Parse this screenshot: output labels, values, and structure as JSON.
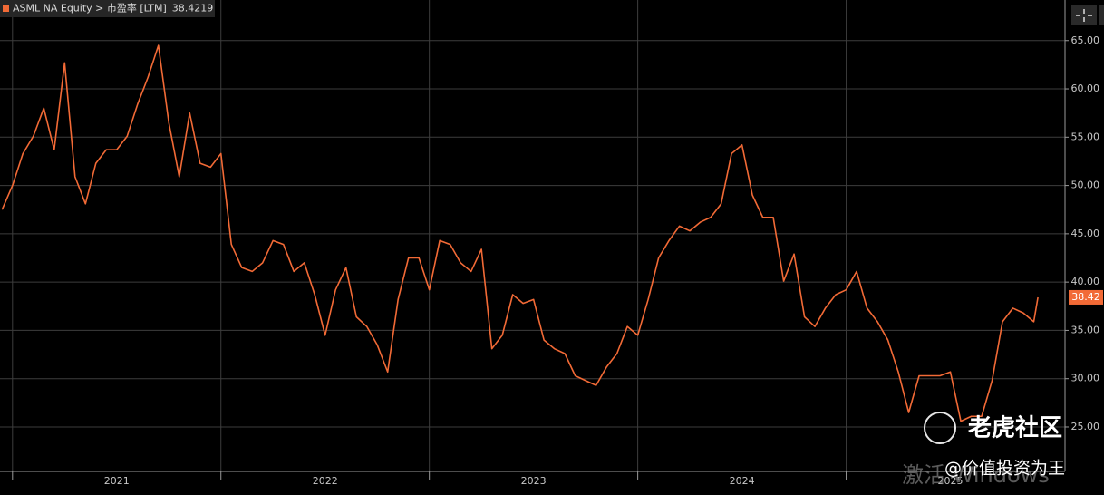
{
  "chart_data": {
    "type": "line",
    "x": [
      2020.95,
      2021.0,
      2021.05,
      2021.1,
      2021.15,
      2021.2,
      2021.25,
      2021.3,
      2021.35,
      2021.4,
      2021.45,
      2021.5,
      2021.55,
      2021.6,
      2021.65,
      2021.7,
      2021.75,
      2021.8,
      2021.85,
      2021.9,
      2021.95,
      2022.0,
      2022.05,
      2022.1,
      2022.15,
      2022.2,
      2022.25,
      2022.3,
      2022.35,
      2022.4,
      2022.45,
      2022.5,
      2022.55,
      2022.6,
      2022.65,
      2022.7,
      2022.75,
      2022.8,
      2022.85,
      2022.9,
      2022.95,
      2023.0,
      2023.05,
      2023.1,
      2023.15,
      2023.2,
      2023.25,
      2023.3,
      2023.35,
      2023.4,
      2023.45,
      2023.5,
      2023.55,
      2023.6,
      2023.65,
      2023.7,
      2023.75,
      2023.8,
      2023.85,
      2023.9,
      2023.95,
      2024.0,
      2024.05,
      2024.1,
      2024.15,
      2024.2,
      2024.25,
      2024.3,
      2024.35,
      2024.4,
      2024.45,
      2024.5,
      2024.55,
      2024.6,
      2024.65,
      2024.7,
      2024.75,
      2024.8,
      2024.85,
      2024.9,
      2024.95,
      2025.0,
      2025.05,
      2025.1,
      2025.15,
      2025.2,
      2025.25,
      2025.3,
      2025.35,
      2025.4,
      2025.45,
      2025.5,
      2025.55,
      2025.6,
      2025.65,
      2025.7,
      2025.75,
      2025.8,
      2025.85,
      2025.9,
      2025.92
    ],
    "series": [
      {
        "name": "ASML NA Equity > 市盈率 [LTM]",
        "color": "#f26a36",
        "values": [
          47.5,
          50.0,
          53.3,
          55.1,
          58.0,
          53.7,
          62.7,
          50.9,
          48.1,
          52.3,
          53.7,
          53.7,
          55.1,
          58.4,
          61.2,
          64.5,
          56.5,
          50.9,
          57.5,
          52.3,
          51.9,
          53.3,
          43.9,
          41.5,
          41.1,
          42.0,
          44.3,
          43.9,
          41.1,
          42.0,
          38.7,
          34.5,
          39.2,
          41.5,
          36.4,
          35.4,
          33.5,
          30.7,
          38.2,
          42.5,
          42.5,
          39.2,
          44.3,
          43.9,
          42.0,
          41.1,
          43.4,
          33.1,
          34.5,
          38.7,
          37.8,
          38.2,
          34.0,
          33.1,
          32.6,
          30.3,
          29.8,
          29.3,
          31.2,
          32.6,
          35.4,
          34.5,
          38.2,
          42.5,
          44.3,
          45.8,
          45.3,
          46.2,
          46.7,
          48.1,
          53.3,
          54.2,
          49.0,
          46.7,
          46.7,
          40.1,
          42.9,
          36.4,
          35.4,
          37.3,
          38.7,
          39.2,
          41.1,
          37.3,
          35.9,
          34.0,
          30.7,
          26.5,
          30.3,
          30.3,
          30.3,
          30.7,
          25.6,
          26.1,
          26.1,
          29.8,
          35.9,
          37.3,
          36.8,
          35.9,
          38.4219
        ],
        "value_labels": [
          null,
          null,
          null,
          null,
          null,
          null,
          null,
          null,
          null,
          null,
          null,
          null,
          null,
          null,
          null,
          null,
          null,
          null,
          null,
          null,
          null,
          null,
          null,
          null,
          null,
          null,
          null,
          null,
          null,
          null,
          null,
          null,
          null,
          null,
          null,
          null,
          null,
          null,
          null,
          null,
          null,
          null,
          null,
          null,
          null,
          null,
          null,
          null,
          null,
          null,
          null,
          null,
          null,
          null,
          null,
          null,
          null,
          null,
          null,
          null,
          null,
          null,
          null,
          null,
          null,
          null,
          null,
          null,
          null,
          null,
          null,
          null,
          null,
          null,
          null,
          null,
          null,
          null,
          null,
          null,
          null,
          null,
          null,
          null,
          null,
          null,
          null,
          null,
          null,
          null,
          null,
          null,
          null,
          null,
          null,
          null,
          null,
          null,
          null,
          null,
          "38.42"
        ]
      }
    ],
    "xlim": [
      2020.94,
      2026.05
    ],
    "xticks": [
      2021,
      2022,
      2023,
      2024,
      2025
    ],
    "ylim": [
      20.4,
      69.2
    ],
    "yticks": [
      {
        "value": 25,
        "label": "25.00"
      },
      {
        "value": 30,
        "label": "30.00"
      },
      {
        "value": 35,
        "label": "35.00"
      },
      {
        "value": 40,
        "label": "40.00"
      },
      {
        "value": 45,
        "label": "45.00"
      },
      {
        "value": 50,
        "label": "50.00"
      },
      {
        "value": 55,
        "label": "55.00"
      },
      {
        "value": 60,
        "label": "60.00"
      },
      {
        "value": 65,
        "label": "65.00"
      }
    ],
    "grid": true,
    "watermarks": [
      "老虎社区",
      "@价值投资为王",
      "激活 Windows"
    ]
  }
}
